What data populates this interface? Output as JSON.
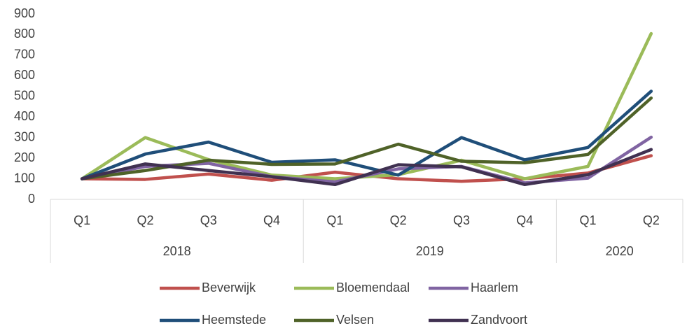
{
  "chart_data": {
    "type": "line",
    "categories": [
      "Q1",
      "Q2",
      "Q3",
      "Q4",
      "Q1",
      "Q2",
      "Q3",
      "Q4",
      "Q1",
      "Q2"
    ],
    "groups": [
      {
        "name": "2018",
        "span": 4
      },
      {
        "name": "2019",
        "span": 4
      },
      {
        "name": "2020",
        "span": 2
      }
    ],
    "series": [
      {
        "name": "Beverwijk",
        "color": "#c0504d",
        "values": [
          100,
          97,
          123,
          93,
          132,
          100,
          88,
          100,
          128,
          212
        ]
      },
      {
        "name": "Bloemendaal",
        "color": "#9bbb59",
        "values": [
          100,
          300,
          193,
          118,
          100,
          120,
          190,
          100,
          160,
          805
        ]
      },
      {
        "name": "Haarlem",
        "color": "#8064a2",
        "values": [
          100,
          160,
          175,
          110,
          85,
          148,
          160,
          80,
          103,
          302
        ]
      },
      {
        "name": "Heemstede",
        "color": "#1f4e79",
        "values": [
          100,
          220,
          278,
          180,
          192,
          118,
          300,
          192,
          252,
          525
        ]
      },
      {
        "name": "Velsen",
        "color": "#4f6228",
        "values": [
          100,
          140,
          190,
          170,
          172,
          268,
          185,
          178,
          218,
          492
        ]
      },
      {
        "name": "Zandvoort",
        "color": "#403151",
        "values": [
          100,
          172,
          140,
          110,
          72,
          168,
          158,
          72,
          120,
          242
        ]
      }
    ],
    "ylim": [
      0,
      900
    ],
    "yticks": [
      0,
      100,
      200,
      300,
      400,
      500,
      600,
      700,
      800,
      900
    ],
    "legend": "bottom"
  }
}
